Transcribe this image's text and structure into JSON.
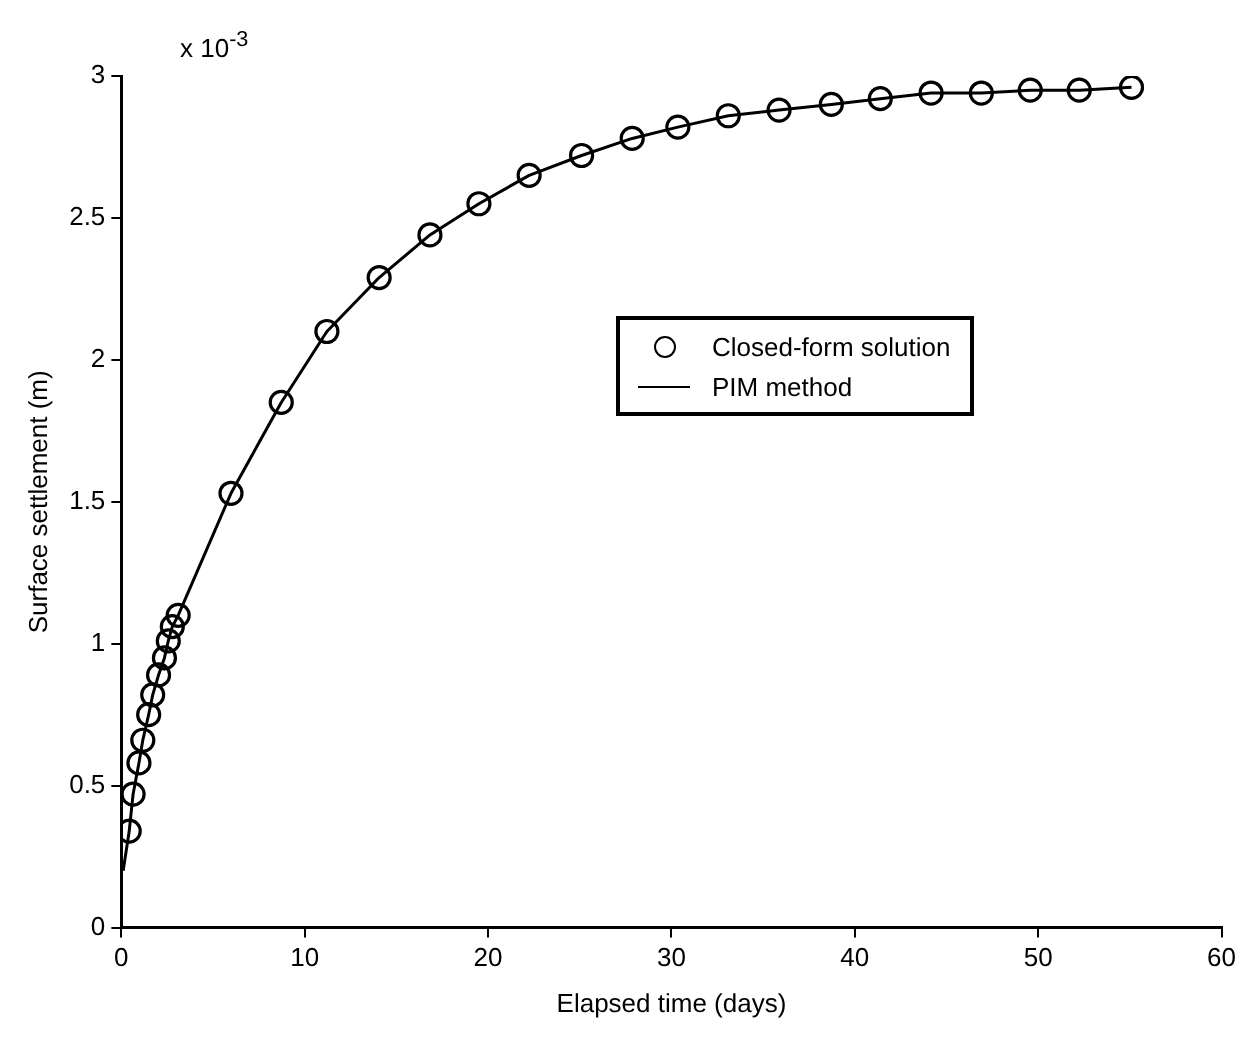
{
  "chart_data": {
    "type": "scatter",
    "xlabel": "Elapsed time (days)",
    "ylabel": "Surface settlement (m)",
    "annotations": [
      "x 10$^{-3}$"
    ],
    "xlim": [
      0,
      60
    ],
    "xticks": [
      0,
      10,
      20,
      30,
      40,
      50,
      60
    ],
    "ylim": [
      0,
      3
    ],
    "yticks": [
      0,
      0.5,
      1,
      1.5,
      2,
      2.5,
      3
    ],
    "grid": false,
    "legend": "right",
    "series": [
      {
        "name": "Closed-form solution",
        "type": "scatter",
        "marker": "circle",
        "color": "#000000",
        "x": [
          0.43,
          0.64,
          0.96,
          1.17,
          1.49,
          1.71,
          2.03,
          2.35,
          2.56,
          2.78,
          3.1,
          5.98,
          8.72,
          11.21,
          14.06,
          16.83,
          19.5,
          22.24,
          25.1,
          27.86,
          30.35,
          33.1,
          35.87,
          38.72,
          41.39,
          44.16,
          46.9,
          49.57,
          52.24,
          55.09
        ],
        "values": [
          0.34,
          0.47,
          0.58,
          0.66,
          0.75,
          0.82,
          0.89,
          0.95,
          1.01,
          1.06,
          1.1,
          1.53,
          1.85,
          2.1,
          2.29,
          2.44,
          2.55,
          2.65,
          2.72,
          2.78,
          2.82,
          2.86,
          2.88,
          2.9,
          2.92,
          2.94,
          2.94,
          2.95,
          2.95,
          2.96
        ]
      },
      {
        "name": "PIM method",
        "type": "line",
        "marker": "none",
        "line_style": "solid",
        "color": "#000000",
        "x": [
          0.1,
          0.43,
          0.64,
          0.96,
          1.17,
          1.49,
          1.71,
          2.03,
          2.35,
          2.56,
          2.78,
          3.1,
          5.98,
          8.72,
          11.21,
          14.06,
          16.83,
          19.5,
          22.24,
          25.1,
          27.86,
          30.35,
          33.1,
          35.87,
          38.72,
          41.39,
          44.16,
          46.9,
          49.57,
          52.24,
          55.09
        ],
        "values": [
          0.2,
          0.34,
          0.47,
          0.58,
          0.66,
          0.75,
          0.82,
          0.89,
          0.95,
          1.01,
          1.06,
          1.1,
          1.53,
          1.85,
          2.1,
          2.29,
          2.44,
          2.55,
          2.65,
          2.72,
          2.78,
          2.82,
          2.86,
          2.88,
          2.9,
          2.92,
          2.94,
          2.94,
          2.95,
          2.95,
          2.96
        ]
      }
    ]
  }
}
